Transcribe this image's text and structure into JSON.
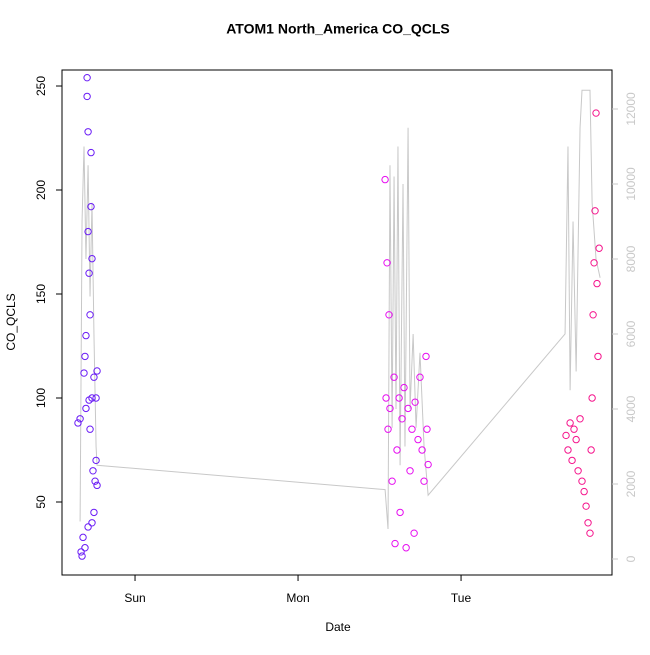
{
  "chart_data": {
    "type": "scatter",
    "title": "ATOM1 North_America CO_QCLS",
    "x_label": "Date",
    "y_label": "CO_QCLS",
    "xlim": [
      -0.448,
      2.926
    ],
    "xticks": [
      {
        "value": 0,
        "label": "Sun"
      },
      {
        "value": 1,
        "label": "Mon"
      },
      {
        "value": 2,
        "label": "Tue"
      }
    ],
    "ylim": [
      14.9,
      257.7
    ],
    "yticks": [
      50,
      100,
      150,
      200,
      250
    ],
    "y2lim": [
      -427,
      13040
    ],
    "y2ticks": [
      0,
      2000,
      4000,
      6000,
      8000,
      10000,
      12000
    ],
    "series": [
      {
        "color": "#6a1cf6",
        "x": [
          -0.35,
          -0.337,
          -0.331,
          -0.325,
          -0.319,
          -0.313,
          -0.307,
          -0.301,
          -0.301,
          -0.294,
          -0.294,
          -0.288,
          -0.288,
          -0.282,
          -0.282,
          -0.276,
          -0.276,
          -0.27,
          -0.27,
          -0.264,
          -0.264,
          -0.258,
          -0.252,
          -0.252,
          -0.245,
          -0.239,
          -0.239,
          -0.233,
          -0.233,
          -0.288,
          -0.264,
          -0.307
        ],
        "values": [
          88,
          90,
          26,
          24,
          33,
          112,
          120,
          95,
          130,
          254,
          245,
          228,
          180,
          160,
          99,
          140,
          85,
          218,
          192,
          167,
          100,
          65,
          45,
          110,
          60,
          100,
          70,
          113,
          58,
          38,
          40,
          28
        ]
      },
      {
        "color": "#e60ef0",
        "x": [
          1.534,
          1.54,
          1.546,
          1.552,
          1.558,
          1.564,
          1.577,
          1.589,
          1.595,
          1.607,
          1.62,
          1.626,
          1.638,
          1.65,
          1.663,
          1.675,
          1.687,
          1.699,
          1.712,
          1.718,
          1.736,
          1.748,
          1.761,
          1.773,
          1.785,
          1.791,
          1.798
        ],
        "values": [
          205,
          100,
          165,
          85,
          140,
          95,
          60,
          110,
          30,
          75,
          100,
          45,
          90,
          105,
          28,
          95,
          65,
          85,
          35,
          98,
          80,
          110,
          75,
          60,
          120,
          85,
          68
        ]
      },
      {
        "color": "#f5148c",
        "x": [
          2.644,
          2.656,
          2.669,
          2.681,
          2.693,
          2.706,
          2.718,
          2.73,
          2.742,
          2.755,
          2.767,
          2.779,
          2.791,
          2.798,
          2.804,
          2.81,
          2.816,
          2.822,
          2.828,
          2.834,
          2.84,
          2.847
        ],
        "values": [
          82,
          75,
          88,
          70,
          85,
          80,
          65,
          90,
          60,
          55,
          48,
          40,
          35,
          75,
          100,
          140,
          165,
          190,
          237,
          155,
          120,
          172
        ]
      },
      {
        "type": "line",
        "axis": "y2",
        "color": "#c8c8c8",
        "x": [
          -0.337,
          -0.325,
          -0.313,
          -0.301,
          -0.288,
          -0.276,
          -0.264,
          -0.252,
          -0.239,
          -0.233,
          1.534,
          1.552,
          1.564,
          1.577,
          1.589,
          1.601,
          1.613,
          1.626,
          1.644,
          1.656,
          1.675,
          1.687,
          1.706,
          1.724,
          1.748,
          1.773,
          1.798,
          2.638,
          2.656,
          2.669,
          2.687,
          2.706,
          2.73,
          2.742,
          2.791,
          2.804,
          2.828,
          2.853
        ],
        "values": [
          1000,
          9000,
          11000,
          8000,
          10500,
          7000,
          9500,
          6000,
          3000,
          2500,
          1850,
          800,
          10500,
          3500,
          10200,
          4000,
          11000,
          2500,
          10000,
          3000,
          11500,
          4000,
          6000,
          3500,
          5500,
          3000,
          1700,
          6000,
          11000,
          4500,
          9000,
          5000,
          11500,
          12500,
          12500,
          9500,
          8000,
          7500
        ]
      }
    ]
  }
}
